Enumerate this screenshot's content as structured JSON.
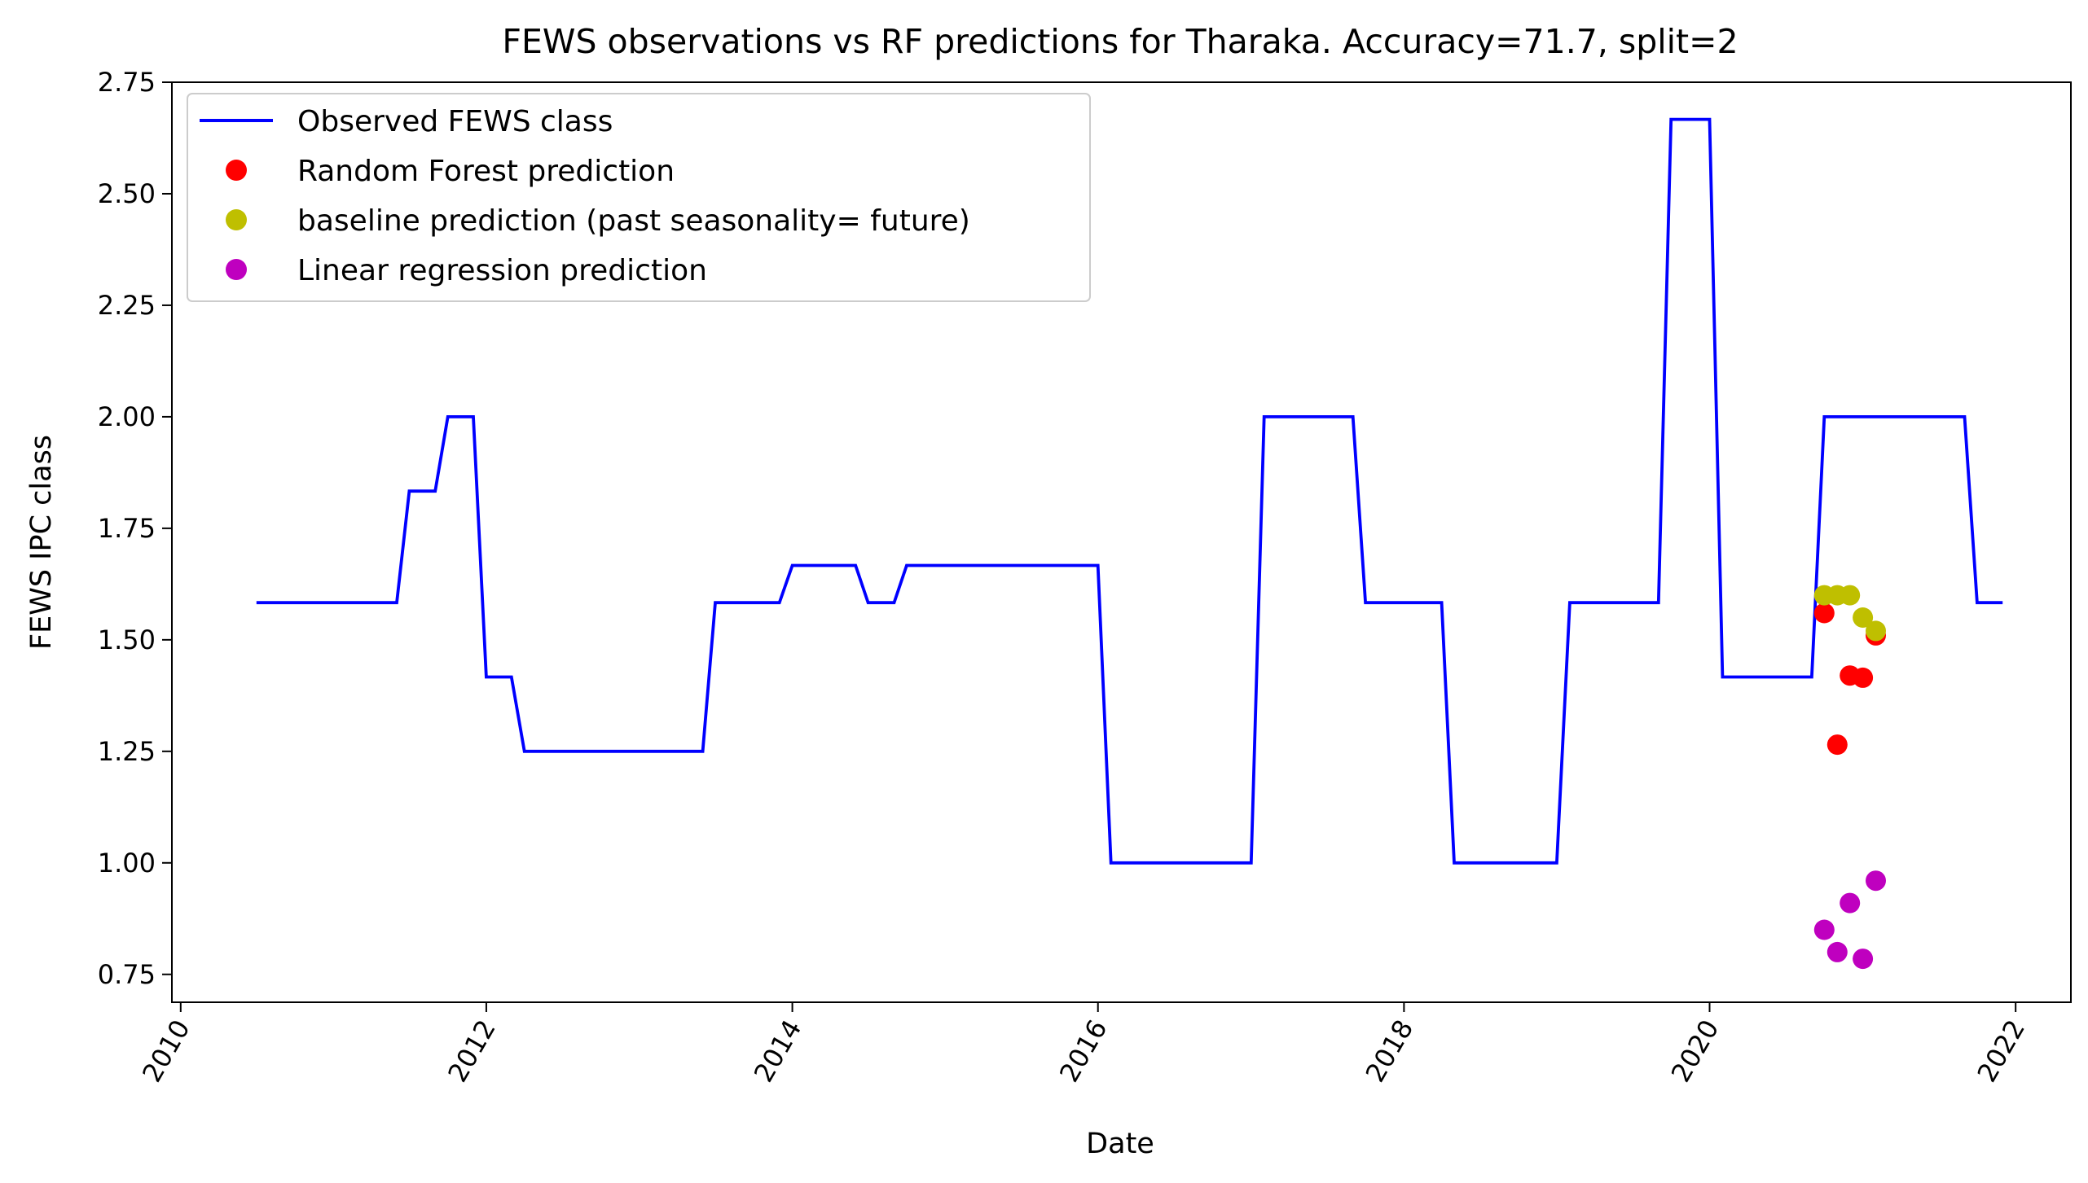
{
  "chart_data": {
    "type": "line",
    "title": "FEWS observations vs RF predictions for Tharaka. Accuracy=71.7, split=2",
    "xlabel": "Date",
    "ylabel": "FEWS IPC class",
    "xlim": [
      "2009-12-11",
      "2022-05-13"
    ],
    "ylim": [
      0.6875,
      2.75
    ],
    "x_ticks": [
      "2010",
      "2012",
      "2014",
      "2016",
      "2018",
      "2020",
      "2022"
    ],
    "y_ticks": [
      "0.75",
      "1.00",
      "1.25",
      "1.50",
      "1.75",
      "2.00",
      "2.25",
      "2.50",
      "2.75"
    ],
    "grid": false,
    "legend_position": "upper-left",
    "series": [
      {
        "name": "Observed FEWS class",
        "style": "line",
        "color": "#0000ff",
        "points": [
          [
            "2010-07-01",
            1.5833
          ],
          [
            "2011-06-01",
            1.5833
          ],
          [
            "2011-07-01",
            1.8333
          ],
          [
            "2011-09-01",
            1.8333
          ],
          [
            "2011-10-01",
            2.0
          ],
          [
            "2011-12-01",
            2.0
          ],
          [
            "2012-01-01",
            1.4167
          ],
          [
            "2012-03-01",
            1.4167
          ],
          [
            "2012-04-01",
            1.25
          ],
          [
            "2013-06-01",
            1.25
          ],
          [
            "2013-07-01",
            1.5833
          ],
          [
            "2013-12-01",
            1.5833
          ],
          [
            "2014-01-01",
            1.6667
          ],
          [
            "2014-06-01",
            1.6667
          ],
          [
            "2014-07-01",
            1.5833
          ],
          [
            "2014-09-01",
            1.5833
          ],
          [
            "2014-10-01",
            1.6667
          ],
          [
            "2016-01-01",
            1.6667
          ],
          [
            "2016-02-01",
            1.0
          ],
          [
            "2017-01-01",
            1.0
          ],
          [
            "2017-02-01",
            2.0
          ],
          [
            "2017-09-01",
            2.0
          ],
          [
            "2017-10-01",
            1.5833
          ],
          [
            "2018-04-01",
            1.5833
          ],
          [
            "2018-05-01",
            1.0
          ],
          [
            "2019-01-01",
            1.0
          ],
          [
            "2019-02-01",
            1.5833
          ],
          [
            "2019-09-01",
            1.5833
          ],
          [
            "2019-10-01",
            2.6667
          ],
          [
            "2020-01-01",
            2.6667
          ],
          [
            "2020-02-01",
            1.4167
          ],
          [
            "2020-09-01",
            1.4167
          ],
          [
            "2020-10-01",
            2.0
          ],
          [
            "2021-09-01",
            2.0
          ],
          [
            "2021-10-01",
            1.5833
          ],
          [
            "2021-12-01",
            1.5833
          ]
        ]
      },
      {
        "name": "Random Forest prediction",
        "style": "markers",
        "color": "#ff0000",
        "points": [
          [
            "2020-10-01",
            1.56
          ],
          [
            "2020-11-01",
            1.265
          ],
          [
            "2020-12-01",
            1.42
          ],
          [
            "2021-01-01",
            1.415
          ],
          [
            "2021-02-01",
            1.51
          ]
        ]
      },
      {
        "name": "baseline prediction (past seasonality= future)",
        "style": "markers",
        "color": "#bfbf00",
        "points": [
          [
            "2020-10-01",
            1.6
          ],
          [
            "2020-11-01",
            1.6
          ],
          [
            "2020-12-01",
            1.6
          ],
          [
            "2021-01-01",
            1.55
          ],
          [
            "2021-02-01",
            1.52
          ]
        ]
      },
      {
        "name": "Linear regression prediction",
        "style": "markers",
        "color": "#bf00bf",
        "points": [
          [
            "2020-10-01",
            0.85
          ],
          [
            "2020-11-01",
            0.8
          ],
          [
            "2020-12-01",
            0.91
          ],
          [
            "2021-01-01",
            0.785
          ],
          [
            "2021-02-01",
            0.96
          ]
        ]
      }
    ]
  }
}
